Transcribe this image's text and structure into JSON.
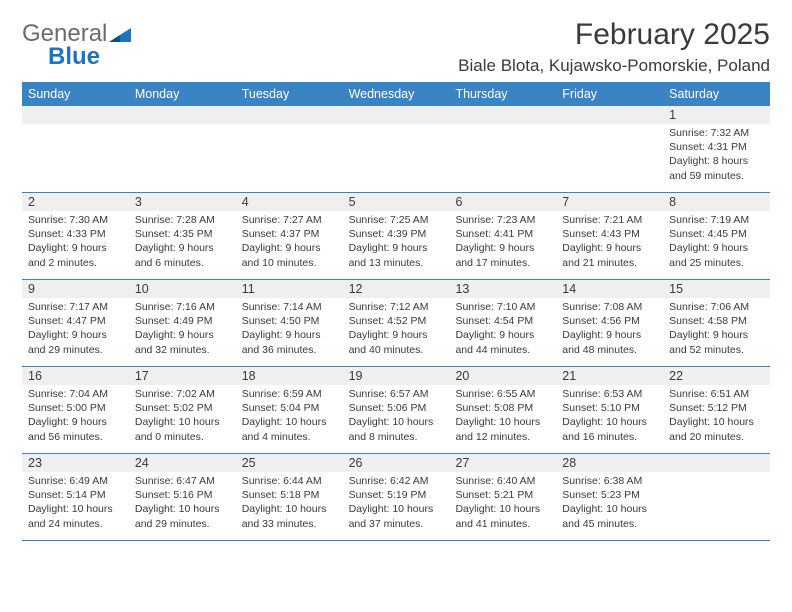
{
  "logo": {
    "line1": "General",
    "line2": "Blue"
  },
  "header": {
    "month_title": "February 2025",
    "location": "Biale Blota, Kujawsko-Pomorskie, Poland"
  },
  "colors": {
    "header_bar": "#3b84c4",
    "daynum_bg": "#efefef",
    "rule": "#3b84c4",
    "logo_blue": "#1e73be"
  },
  "day_names": [
    "Sunday",
    "Monday",
    "Tuesday",
    "Wednesday",
    "Thursday",
    "Friday",
    "Saturday"
  ],
  "weeks": [
    [
      {
        "n": "",
        "sunrise": "",
        "sunset": "",
        "daylight": ""
      },
      {
        "n": "",
        "sunrise": "",
        "sunset": "",
        "daylight": ""
      },
      {
        "n": "",
        "sunrise": "",
        "sunset": "",
        "daylight": ""
      },
      {
        "n": "",
        "sunrise": "",
        "sunset": "",
        "daylight": ""
      },
      {
        "n": "",
        "sunrise": "",
        "sunset": "",
        "daylight": ""
      },
      {
        "n": "",
        "sunrise": "",
        "sunset": "",
        "daylight": ""
      },
      {
        "n": "1",
        "sunrise": "Sunrise: 7:32 AM",
        "sunset": "Sunset: 4:31 PM",
        "daylight": "Daylight: 8 hours and 59 minutes."
      }
    ],
    [
      {
        "n": "2",
        "sunrise": "Sunrise: 7:30 AM",
        "sunset": "Sunset: 4:33 PM",
        "daylight": "Daylight: 9 hours and 2 minutes."
      },
      {
        "n": "3",
        "sunrise": "Sunrise: 7:28 AM",
        "sunset": "Sunset: 4:35 PM",
        "daylight": "Daylight: 9 hours and 6 minutes."
      },
      {
        "n": "4",
        "sunrise": "Sunrise: 7:27 AM",
        "sunset": "Sunset: 4:37 PM",
        "daylight": "Daylight: 9 hours and 10 minutes."
      },
      {
        "n": "5",
        "sunrise": "Sunrise: 7:25 AM",
        "sunset": "Sunset: 4:39 PM",
        "daylight": "Daylight: 9 hours and 13 minutes."
      },
      {
        "n": "6",
        "sunrise": "Sunrise: 7:23 AM",
        "sunset": "Sunset: 4:41 PM",
        "daylight": "Daylight: 9 hours and 17 minutes."
      },
      {
        "n": "7",
        "sunrise": "Sunrise: 7:21 AM",
        "sunset": "Sunset: 4:43 PM",
        "daylight": "Daylight: 9 hours and 21 minutes."
      },
      {
        "n": "8",
        "sunrise": "Sunrise: 7:19 AM",
        "sunset": "Sunset: 4:45 PM",
        "daylight": "Daylight: 9 hours and 25 minutes."
      }
    ],
    [
      {
        "n": "9",
        "sunrise": "Sunrise: 7:17 AM",
        "sunset": "Sunset: 4:47 PM",
        "daylight": "Daylight: 9 hours and 29 minutes."
      },
      {
        "n": "10",
        "sunrise": "Sunrise: 7:16 AM",
        "sunset": "Sunset: 4:49 PM",
        "daylight": "Daylight: 9 hours and 32 minutes."
      },
      {
        "n": "11",
        "sunrise": "Sunrise: 7:14 AM",
        "sunset": "Sunset: 4:50 PM",
        "daylight": "Daylight: 9 hours and 36 minutes."
      },
      {
        "n": "12",
        "sunrise": "Sunrise: 7:12 AM",
        "sunset": "Sunset: 4:52 PM",
        "daylight": "Daylight: 9 hours and 40 minutes."
      },
      {
        "n": "13",
        "sunrise": "Sunrise: 7:10 AM",
        "sunset": "Sunset: 4:54 PM",
        "daylight": "Daylight: 9 hours and 44 minutes."
      },
      {
        "n": "14",
        "sunrise": "Sunrise: 7:08 AM",
        "sunset": "Sunset: 4:56 PM",
        "daylight": "Daylight: 9 hours and 48 minutes."
      },
      {
        "n": "15",
        "sunrise": "Sunrise: 7:06 AM",
        "sunset": "Sunset: 4:58 PM",
        "daylight": "Daylight: 9 hours and 52 minutes."
      }
    ],
    [
      {
        "n": "16",
        "sunrise": "Sunrise: 7:04 AM",
        "sunset": "Sunset: 5:00 PM",
        "daylight": "Daylight: 9 hours and 56 minutes."
      },
      {
        "n": "17",
        "sunrise": "Sunrise: 7:02 AM",
        "sunset": "Sunset: 5:02 PM",
        "daylight": "Daylight: 10 hours and 0 minutes."
      },
      {
        "n": "18",
        "sunrise": "Sunrise: 6:59 AM",
        "sunset": "Sunset: 5:04 PM",
        "daylight": "Daylight: 10 hours and 4 minutes."
      },
      {
        "n": "19",
        "sunrise": "Sunrise: 6:57 AM",
        "sunset": "Sunset: 5:06 PM",
        "daylight": "Daylight: 10 hours and 8 minutes."
      },
      {
        "n": "20",
        "sunrise": "Sunrise: 6:55 AM",
        "sunset": "Sunset: 5:08 PM",
        "daylight": "Daylight: 10 hours and 12 minutes."
      },
      {
        "n": "21",
        "sunrise": "Sunrise: 6:53 AM",
        "sunset": "Sunset: 5:10 PM",
        "daylight": "Daylight: 10 hours and 16 minutes."
      },
      {
        "n": "22",
        "sunrise": "Sunrise: 6:51 AM",
        "sunset": "Sunset: 5:12 PM",
        "daylight": "Daylight: 10 hours and 20 minutes."
      }
    ],
    [
      {
        "n": "23",
        "sunrise": "Sunrise: 6:49 AM",
        "sunset": "Sunset: 5:14 PM",
        "daylight": "Daylight: 10 hours and 24 minutes."
      },
      {
        "n": "24",
        "sunrise": "Sunrise: 6:47 AM",
        "sunset": "Sunset: 5:16 PM",
        "daylight": "Daylight: 10 hours and 29 minutes."
      },
      {
        "n": "25",
        "sunrise": "Sunrise: 6:44 AM",
        "sunset": "Sunset: 5:18 PM",
        "daylight": "Daylight: 10 hours and 33 minutes."
      },
      {
        "n": "26",
        "sunrise": "Sunrise: 6:42 AM",
        "sunset": "Sunset: 5:19 PM",
        "daylight": "Daylight: 10 hours and 37 minutes."
      },
      {
        "n": "27",
        "sunrise": "Sunrise: 6:40 AM",
        "sunset": "Sunset: 5:21 PM",
        "daylight": "Daylight: 10 hours and 41 minutes."
      },
      {
        "n": "28",
        "sunrise": "Sunrise: 6:38 AM",
        "sunset": "Sunset: 5:23 PM",
        "daylight": "Daylight: 10 hours and 45 minutes."
      },
      {
        "n": "",
        "sunrise": "",
        "sunset": "",
        "daylight": ""
      }
    ]
  ]
}
